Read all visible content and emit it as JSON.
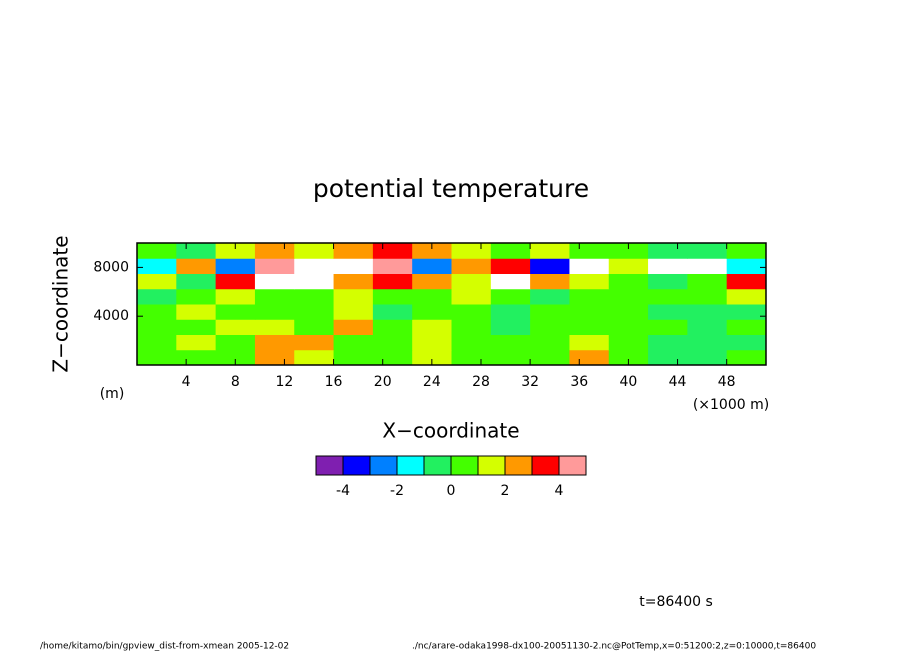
{
  "chart_data": {
    "type": "contour",
    "title": "potential temperature",
    "xlabel": "X−coordinate",
    "ylabel": "Z−coordinate",
    "x_unit": "(×1000 m)",
    "y_unit": "(m)",
    "annotation": "t=86400 s",
    "footer_left": "/home/kitamo/bin/gpview_dist-from-xmean   2005-12-02",
    "footer_right": "./nc/arare-odaka1998-dx100-20051130-2.nc@PotTemp,x=0:51200:2,z=0:10000,t=86400",
    "xlim": [
      0,
      51.2
    ],
    "ylim": [
      0,
      10000
    ],
    "xticks": [
      4,
      8,
      12,
      16,
      20,
      24,
      28,
      32,
      36,
      40,
      44,
      48
    ],
    "yticks": [
      4000,
      8000
    ],
    "colorbar_levels": [
      -5,
      -4,
      -3,
      -2,
      -1,
      0,
      1,
      2,
      3,
      4,
      5
    ],
    "colorbar_ticks": [
      -4,
      -2,
      0,
      2,
      4
    ],
    "colors": [
      "#7f1fb0",
      "#0000ff",
      "#0080ff",
      "#00ffff",
      "#22f060",
      "#44ff00",
      "#d4ff00",
      "#ff9900",
      "#ff0000",
      "#ff9a9a"
    ],
    "field": {
      "x_edges": [
        0,
        3.2,
        6.4,
        9.6,
        12.8,
        16,
        19.2,
        22.4,
        25.6,
        28.8,
        32,
        35.2,
        38.4,
        41.6,
        44.8,
        48,
        51.2
      ],
      "z_edges": [
        0,
        1250,
        2500,
        3750,
        5000,
        6250,
        7500,
        8750,
        10000
      ],
      "values": [
        [
          0.5,
          0.5,
          0.5,
          2,
          1.5,
          0.5,
          0.5,
          1,
          0.5,
          0.5,
          0.5,
          2,
          0.5,
          -0.5,
          -0.5,
          0.5
        ],
        [
          0.5,
          1,
          0.5,
          2.5,
          2,
          0.5,
          0.5,
          1.5,
          0.5,
          0.5,
          0.5,
          1.5,
          0.5,
          -0.5,
          -0.5,
          -0.5
        ],
        [
          0.5,
          0.5,
          1,
          1.5,
          0.5,
          2,
          0.5,
          1,
          0.5,
          -0.5,
          0.5,
          0.5,
          0.5,
          0.5,
          -0.5,
          0.5
        ],
        [
          0.5,
          1.5,
          0.5,
          0.5,
          0.5,
          1.5,
          -0.5,
          0.5,
          0.5,
          -0.5,
          0.5,
          0.5,
          0.5,
          -0.5,
          -0.5,
          -0.5
        ],
        [
          -0.5,
          0.5,
          1.5,
          0.5,
          0.5,
          1.5,
          0.5,
          0.5,
          1.5,
          0.5,
          -0.5,
          0.5,
          0.5,
          0.5,
          0.5,
          1.5
        ],
        [
          1.5,
          -0.5,
          3,
          6,
          6,
          2.5,
          3.5,
          2.5,
          1.5,
          6,
          2.5,
          1.5,
          0.5,
          -0.5,
          0.5,
          3
        ],
        [
          -1.5,
          2.5,
          -2.5,
          4,
          6,
          6,
          4,
          -2.5,
          2.5,
          3,
          -3.5,
          6,
          1.5,
          6,
          6,
          -1.5
        ],
        [
          0.5,
          -0.5,
          1.5,
          2.5,
          1.5,
          2.5,
          3.5,
          2.5,
          1.5,
          0.5,
          1.5,
          0.5,
          0.5,
          -0.5,
          -0.5,
          0.5
        ]
      ]
    }
  }
}
